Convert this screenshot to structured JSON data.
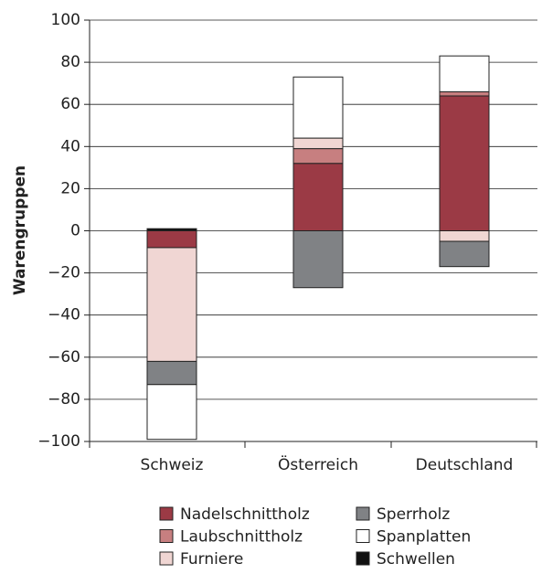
{
  "chart_data": {
    "type": "stacked-bar",
    "y_label": "Warengruppen",
    "categories": [
      "Schweiz",
      "Österreich",
      "Deutschland"
    ],
    "series": [
      {
        "name": "Nadelschnittholz",
        "color": "#9b3a45",
        "values": [
          -8,
          32,
          64
        ]
      },
      {
        "name": "Laubschnittholz",
        "color": "#c77f80",
        "values": [
          0,
          7,
          2
        ]
      },
      {
        "name": "Furniere",
        "color": "#f0d6d3",
        "values": [
          -54,
          5,
          -5
        ]
      },
      {
        "name": "Sperrholz",
        "color": "#808285",
        "values": [
          -11,
          -27,
          -12
        ]
      },
      {
        "name": "Spanplatten",
        "color": "#ffffff",
        "values": [
          -26,
          29,
          17
        ]
      },
      {
        "name": "Schwellen",
        "color": "#111111",
        "values": [
          1,
          0,
          0
        ]
      }
    ],
    "ylim": [
      -100,
      100
    ],
    "yticks": [
      {
        "value": -100,
        "label": "−100"
      },
      {
        "value": -80,
        "label": "−80"
      },
      {
        "value": -60,
        "label": "−60"
      },
      {
        "value": -40,
        "label": "−40"
      },
      {
        "value": -20,
        "label": "−20"
      },
      0,
      20,
      40,
      60,
      80,
      100
    ],
    "grid": true
  }
}
